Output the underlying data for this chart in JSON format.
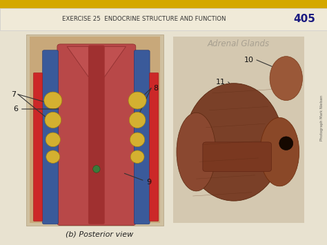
{
  "title": "EXERCISE 25  ENDOCRINE STRUCTURE AND FUNCTION",
  "page_num": "405",
  "subtitle_caption": "(b) Posterior view",
  "page_bg": "#e8e2d0",
  "header_bg": "#f0ead8",
  "yellow_strip_color": "#d4a800",
  "header_text_color": "#333333",
  "page_num_color": "#1a1a80",
  "photo_credit": "Photograph Mark Nielsen",
  "mirror_text": "Adrenal Glands",
  "label_color": "#111111",
  "line_color": "#333333"
}
